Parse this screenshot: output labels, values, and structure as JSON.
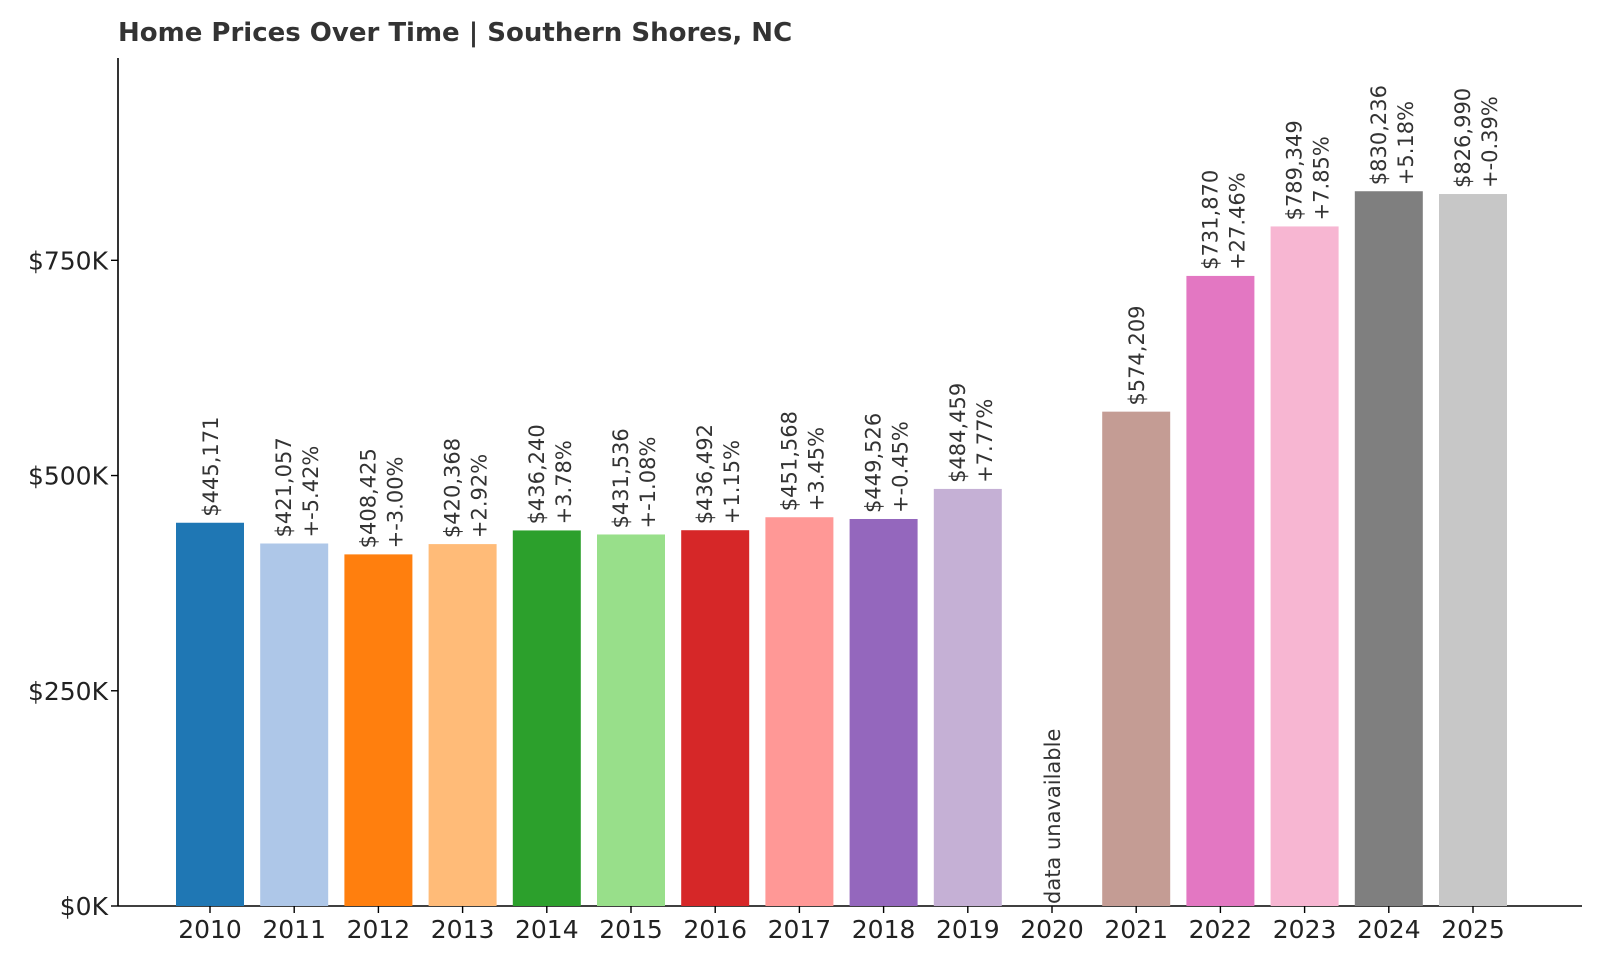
{
  "chart_data": {
    "type": "bar",
    "title": "Home Prices Over Time | Southern Shores, NC",
    "xlabel": "",
    "ylabel": "",
    "ylim": [
      0,
      985000
    ],
    "yticks": [
      {
        "value": 0,
        "label": "$0K"
      },
      {
        "value": 250000,
        "label": "$250K"
      },
      {
        "value": 500000,
        "label": "$500K"
      },
      {
        "value": 750000,
        "label": "$750K"
      }
    ],
    "grid": false,
    "missing_label": "data unavailable",
    "categories": [
      "2010",
      "2011",
      "2012",
      "2013",
      "2014",
      "2015",
      "2016",
      "2017",
      "2018",
      "2019",
      "2020",
      "2021",
      "2022",
      "2023",
      "2024",
      "2025"
    ],
    "values": [
      445171,
      421057,
      408425,
      420368,
      436240,
      431536,
      436492,
      451568,
      449526,
      484459,
      null,
      574209,
      731870,
      789349,
      830236,
      826990
    ],
    "value_labels": [
      "$445,171",
      "$421,057",
      "$408,425",
      "$420,368",
      "$436,240",
      "$431,536",
      "$436,492",
      "$451,568",
      "$449,526",
      "$484,459",
      "",
      "$574,209",
      "$731,870",
      "$789,349",
      "$830,236",
      "$826,990"
    ],
    "change_labels": [
      "",
      "+-5.42%",
      "+-3.00%",
      "+2.92%",
      "+3.78%",
      "+-1.08%",
      "+1.15%",
      "+3.45%",
      "+-0.45%",
      "+7.77%",
      "",
      "",
      "+27.46%",
      "+7.85%",
      "+5.18%",
      "+-0.39%"
    ],
    "colors": [
      "#1f77b4",
      "#aec7e8",
      "#ff7f0e",
      "#ffbb78",
      "#2ca02c",
      "#98df8a",
      "#d62728",
      "#ff9896",
      "#9467bd",
      "#c5b0d5",
      "#8c564b",
      "#c49c94",
      "#e377c2",
      "#f7b6d2",
      "#7f7f7f",
      "#c7c7c7"
    ]
  }
}
